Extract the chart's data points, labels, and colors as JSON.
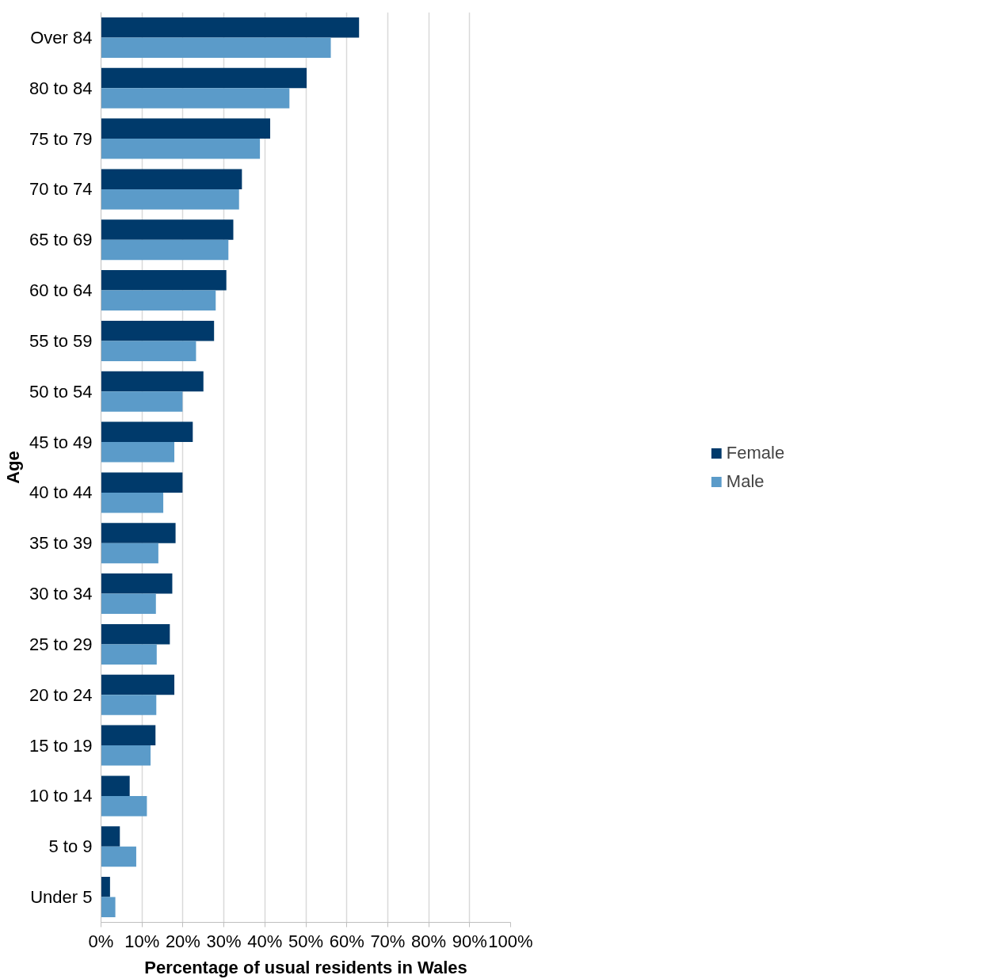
{
  "chart_data": {
    "type": "bar",
    "orientation": "horizontal",
    "xlabel": "Percentage of usual residents in Wales",
    "ylabel": "Age",
    "categories": [
      "Over 84",
      "80 to 84",
      "75 to 79",
      "70 to 74",
      "65 to 69",
      "60 to 64",
      "55 to 59",
      "50 to 54",
      "45 to 49",
      "40 to 44",
      "35 to 39",
      "30 to 34",
      "25 to 29",
      "20 to 24",
      "15 to 19",
      "10 to 14",
      "5 to 9",
      "Under 5"
    ],
    "series": [
      {
        "name": "Female",
        "color": "#003a6b",
        "values": [
          63.0,
          50.2,
          41.3,
          34.4,
          32.3,
          30.6,
          27.6,
          25.0,
          22.4,
          19.9,
          18.2,
          17.4,
          16.8,
          17.9,
          13.3,
          7.0,
          4.6,
          2.2
        ]
      },
      {
        "name": "Male",
        "color": "#5b9bc9",
        "values": [
          56.1,
          46.0,
          38.8,
          33.7,
          31.1,
          28.0,
          23.2,
          19.9,
          17.9,
          15.2,
          14.0,
          13.4,
          13.6,
          13.5,
          12.1,
          11.2,
          8.6,
          3.5
        ]
      }
    ],
    "xlim": [
      0,
      100
    ],
    "xticks": [
      {
        "value": 0,
        "label": "0%"
      },
      {
        "value": 10,
        "label": "10%"
      },
      {
        "value": 20,
        "label": "20%"
      },
      {
        "value": 30,
        "label": "30%"
      },
      {
        "value": 40,
        "label": "40%"
      },
      {
        "value": 50,
        "label": "50%"
      },
      {
        "value": 60,
        "label": "60%"
      },
      {
        "value": 70,
        "label": "70%"
      },
      {
        "value": 80,
        "label": "80%"
      },
      {
        "value": 90,
        "label": "90%"
      },
      {
        "value": 100,
        "label": "100%"
      }
    ],
    "grid": "x",
    "legend": "right"
  }
}
